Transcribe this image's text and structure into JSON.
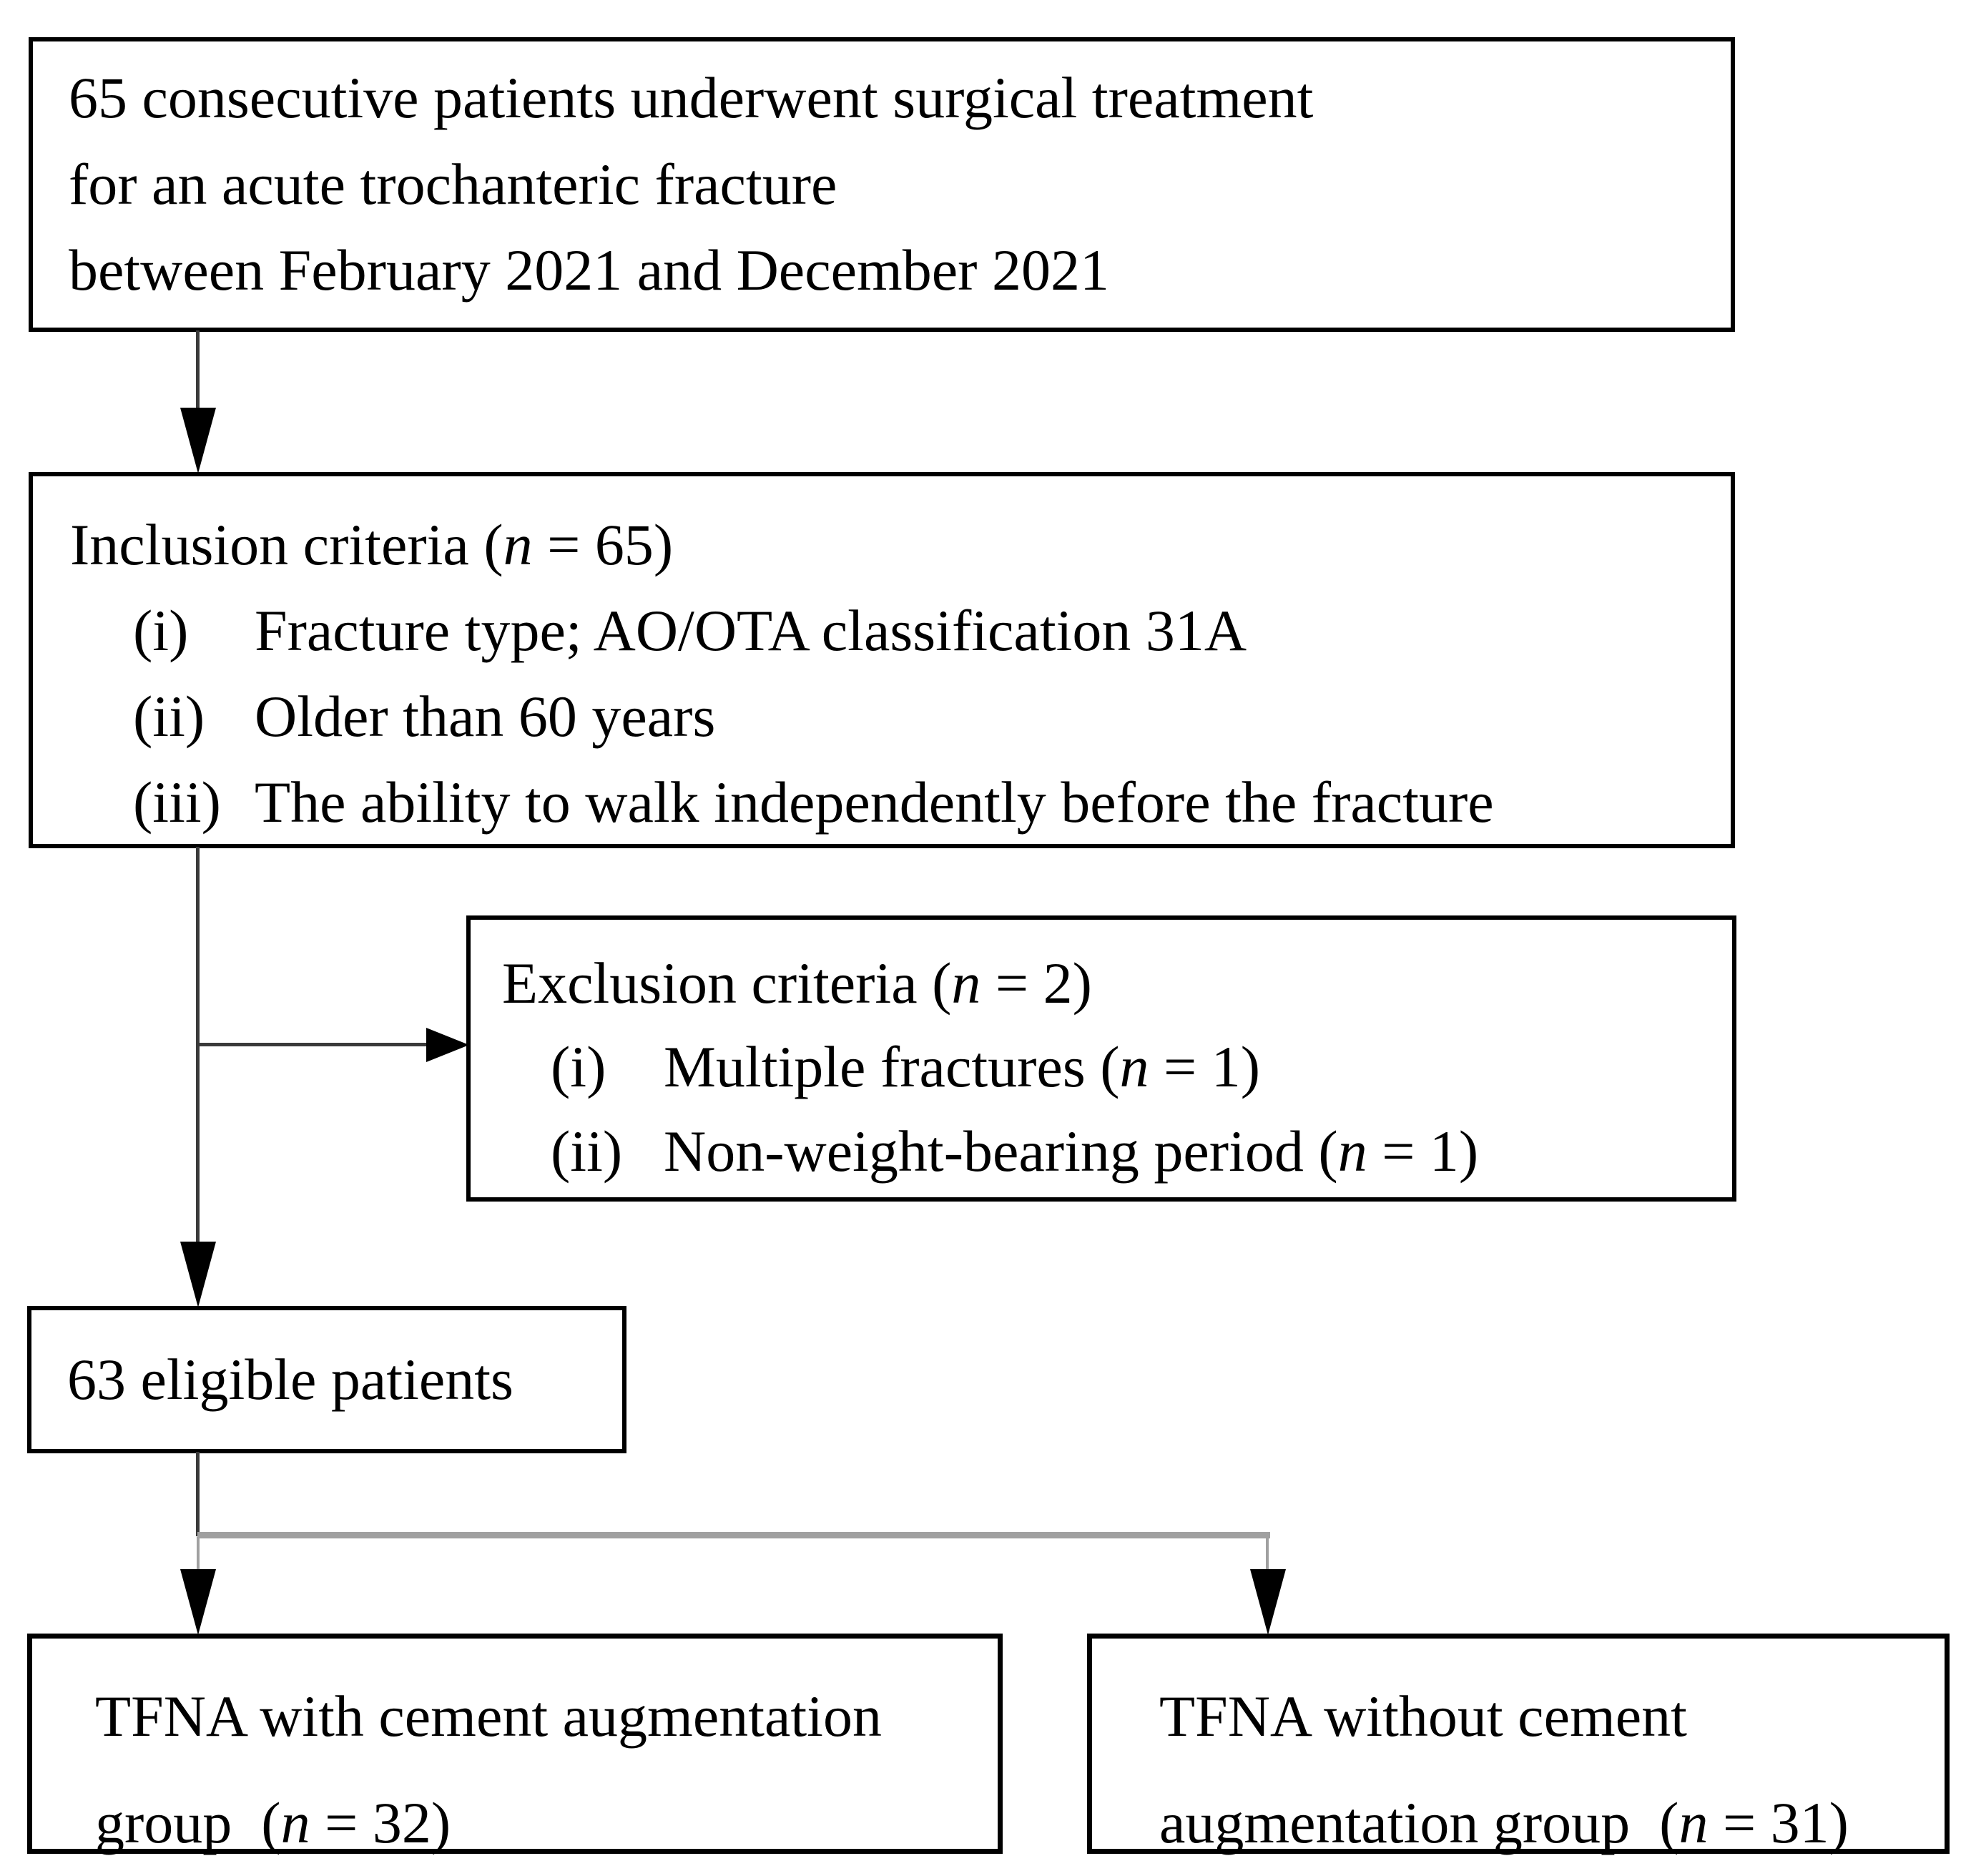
{
  "figure": {
    "enrollment_box": {
      "lines": [
        "65 consecutive patients underwent surgical treatment",
        "for an acute trochanteric fracture",
        "between February 2021 and December 2021"
      ]
    },
    "inclusion_box": {
      "title": "Inclusion criteria (n = 65)",
      "items": [
        {
          "marker": "(i)",
          "text": "Fracture type; AO/OTA classification 31A"
        },
        {
          "marker": "(ii)",
          "text": "Older than 60 years"
        },
        {
          "marker": "(iii)",
          "text": "The ability to walk independently before the fracture"
        }
      ]
    },
    "exclusion_box": {
      "title": "Exclusion criteria (n = 2)",
      "items": [
        {
          "marker": "(i)",
          "text": "Multiple fractures (n = 1)"
        },
        {
          "marker": "(ii)",
          "text": "Non-weight-bearing period (n = 1)"
        }
      ]
    },
    "eligible_box": {
      "text": "63 eligible patients"
    },
    "with_cement_box": {
      "lines": [
        "TFNA with cement augmentation",
        "group  (n = 32)"
      ]
    },
    "without_cement_box": {
      "lines": [
        "TFNA without cement",
        "augmentation group  (n = 31)"
      ]
    }
  },
  "style": {
    "background": "#ffffff",
    "text_color": "#000000",
    "box_border_color": "#000000",
    "arrow_color": "#3a3a3a",
    "arrowhead_color": "#000000",
    "branch_line_color": "#a0a0a0"
  }
}
